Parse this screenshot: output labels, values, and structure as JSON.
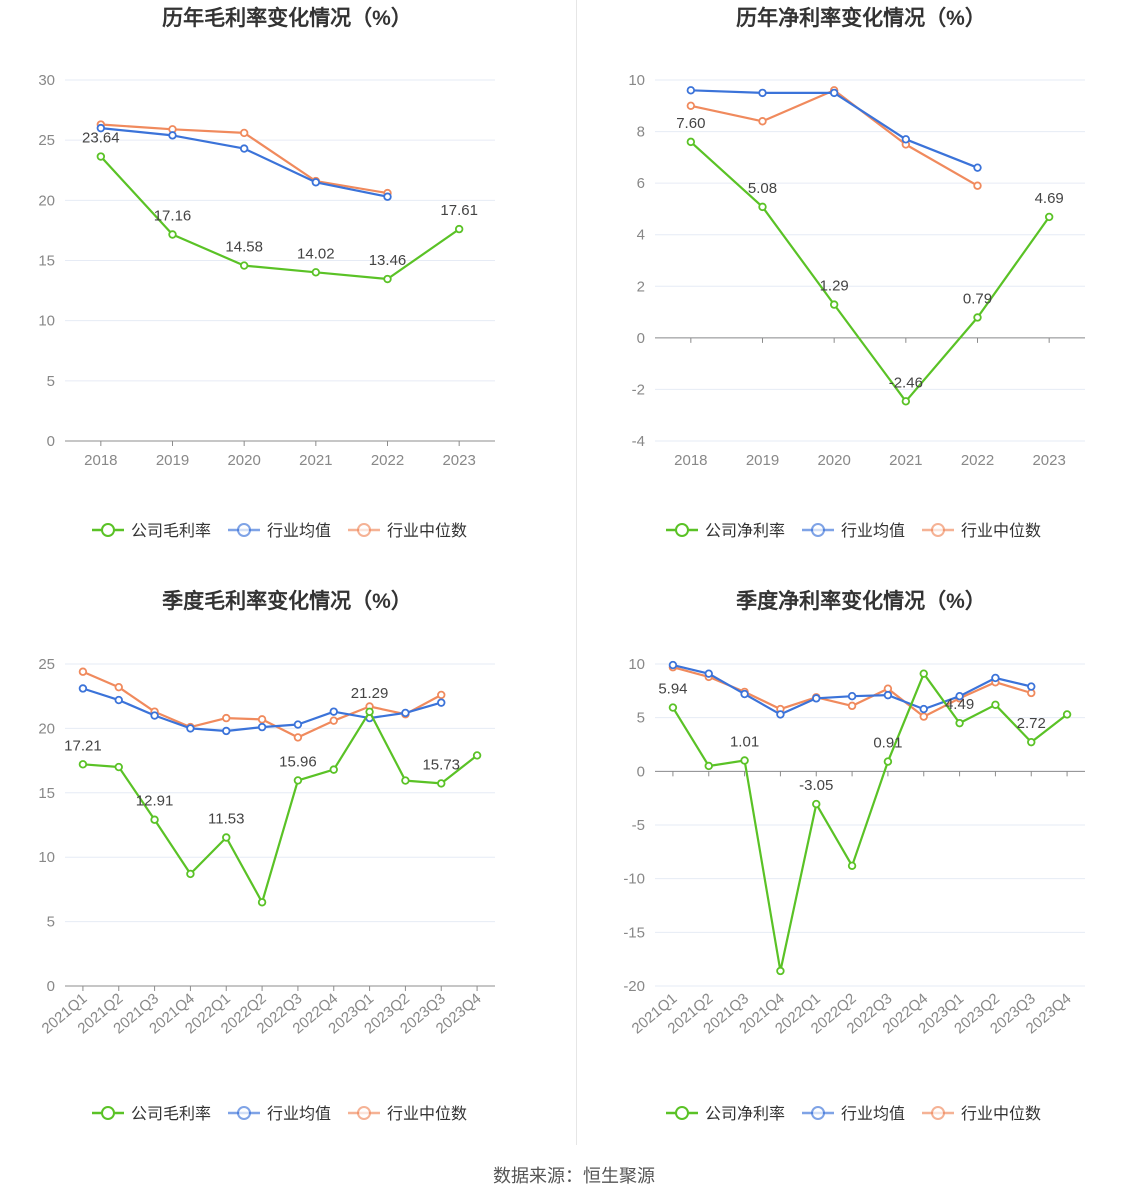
{
  "colors": {
    "company": "#5ac226",
    "industry_avg": "#3b73d9",
    "industry_median": "#f08a5d",
    "grid": "#e6ebf5",
    "axis": "#8c8c8c"
  },
  "chart_data": [
    {
      "id": "annual-gross",
      "type": "line",
      "title": "历年毛利率变化情况（%）",
      "categories": [
        "2018",
        "2019",
        "2020",
        "2021",
        "2022",
        "2023"
      ],
      "ylim": [
        0,
        30
      ],
      "yticks": [
        0,
        5,
        10,
        15,
        20,
        25,
        30
      ],
      "grid": true,
      "legend": "bottom",
      "series": [
        {
          "name": "公司毛利率",
          "values": [
            23.64,
            17.16,
            14.58,
            14.02,
            13.46,
            17.61
          ],
          "labels": true
        },
        {
          "name": "行业均值",
          "values": [
            26.0,
            25.4,
            24.3,
            21.5,
            20.3,
            null
          ]
        },
        {
          "name": "行业中位数",
          "values": [
            26.3,
            25.9,
            25.6,
            21.6,
            20.6,
            null
          ]
        }
      ]
    },
    {
      "id": "annual-net",
      "type": "line",
      "title": "历年净利率变化情况（%）",
      "categories": [
        "2018",
        "2019",
        "2020",
        "2021",
        "2022",
        "2023"
      ],
      "ylim": [
        -4,
        10
      ],
      "yticks": [
        -4,
        -2,
        0,
        2,
        4,
        6,
        8,
        10
      ],
      "grid": true,
      "legend": "bottom",
      "series": [
        {
          "name": "公司净利率",
          "values": [
            7.6,
            5.08,
            1.29,
            -2.46,
            0.79,
            4.69
          ],
          "labels": true
        },
        {
          "name": "行业均值",
          "values": [
            9.6,
            9.5,
            9.5,
            7.7,
            6.6,
            null
          ]
        },
        {
          "name": "行业中位数",
          "values": [
            9.0,
            8.4,
            9.6,
            7.5,
            5.9,
            null
          ]
        }
      ]
    },
    {
      "id": "quarterly-gross",
      "type": "line",
      "title": "季度毛利率变化情况（%）",
      "categories": [
        "2021Q1",
        "2021Q2",
        "2021Q3",
        "2021Q4",
        "2022Q1",
        "2022Q2",
        "2022Q3",
        "2022Q4",
        "2023Q1",
        "2023Q2",
        "2023Q3",
        "2023Q4"
      ],
      "ylim": [
        0,
        25
      ],
      "yticks": [
        0,
        5,
        10,
        15,
        20,
        25
      ],
      "grid": true,
      "legend": "bottom",
      "series": [
        {
          "name": "公司毛利率",
          "values": [
            17.21,
            17.0,
            12.91,
            8.7,
            11.53,
            6.5,
            15.96,
            16.8,
            21.29,
            15.95,
            15.73,
            17.9
          ],
          "label_indices": [
            0,
            2,
            4,
            6,
            8,
            10
          ]
        },
        {
          "name": "行业均值",
          "values": [
            23.1,
            22.2,
            21.0,
            20.0,
            19.8,
            20.1,
            20.3,
            21.3,
            20.8,
            21.2,
            22.0,
            null
          ]
        },
        {
          "name": "行业中位数",
          "values": [
            24.4,
            23.2,
            21.3,
            20.1,
            20.8,
            20.7,
            19.3,
            20.6,
            21.7,
            21.1,
            22.6,
            null
          ]
        }
      ]
    },
    {
      "id": "quarterly-net",
      "type": "line",
      "title": "季度净利率变化情况（%）",
      "categories": [
        "2021Q1",
        "2021Q2",
        "2021Q3",
        "2021Q4",
        "2022Q1",
        "2022Q2",
        "2022Q3",
        "2022Q4",
        "2023Q1",
        "2023Q2",
        "2023Q3",
        "2023Q4"
      ],
      "ylim": [
        -20,
        10
      ],
      "yticks": [
        -20,
        -15,
        -10,
        -5,
        0,
        5,
        10
      ],
      "grid": true,
      "legend": "bottom",
      "series": [
        {
          "name": "公司净利率",
          "values": [
            5.94,
            0.5,
            1.01,
            -18.6,
            -3.05,
            -8.8,
            0.91,
            9.1,
            4.49,
            6.2,
            2.72,
            5.3
          ],
          "label_indices": [
            0,
            2,
            4,
            6,
            8,
            10
          ]
        },
        {
          "name": "行业均值",
          "values": [
            9.9,
            9.1,
            7.2,
            5.3,
            6.8,
            7.0,
            7.1,
            5.8,
            7.0,
            8.7,
            7.9,
            null
          ]
        },
        {
          "name": "行业中位数",
          "values": [
            9.7,
            8.8,
            7.4,
            5.8,
            6.9,
            6.1,
            7.7,
            5.1,
            6.8,
            8.3,
            7.3,
            null
          ]
        }
      ]
    }
  ],
  "footer": {
    "source": "数据来源：恒生聚源"
  }
}
